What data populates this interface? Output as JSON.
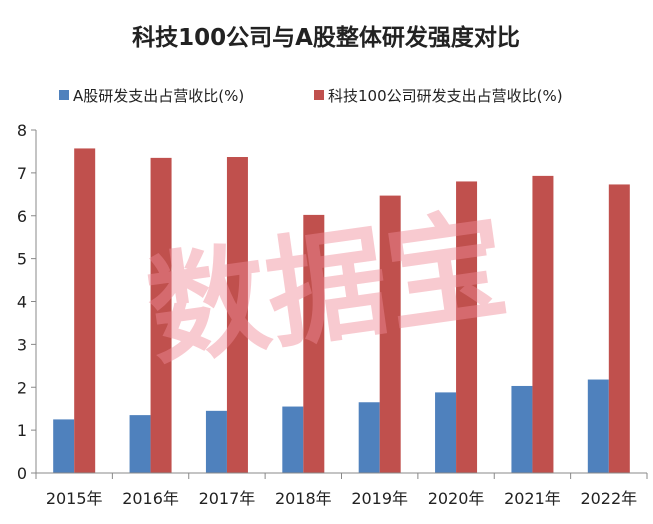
{
  "chart_data": {
    "type": "bar",
    "title": "科技100公司与A股整体研发强度对比",
    "categories": [
      "2015年",
      "2016年",
      "2017年",
      "2018年",
      "2019年",
      "2020年",
      "2021年",
      "2022年"
    ],
    "series": [
      {
        "name": "A股研发支出占营收比(%)",
        "color": "#4f81bd",
        "values": [
          1.25,
          1.35,
          1.45,
          1.55,
          1.65,
          1.88,
          2.03,
          2.18
        ]
      },
      {
        "name": "科技100公司研发支出占营收比(%)",
        "color": "#c0504d",
        "values": [
          7.57,
          7.35,
          7.37,
          6.02,
          6.47,
          6.8,
          6.93,
          6.73
        ]
      }
    ],
    "y_ticks": [
      "0",
      "1",
      "2",
      "3",
      "4",
      "5",
      "6",
      "7",
      "8"
    ],
    "ylim": [
      0,
      8
    ],
    "grid": false,
    "legend_position": "top"
  },
  "watermark": {
    "text": "数据宝",
    "color": "#f08a96"
  }
}
